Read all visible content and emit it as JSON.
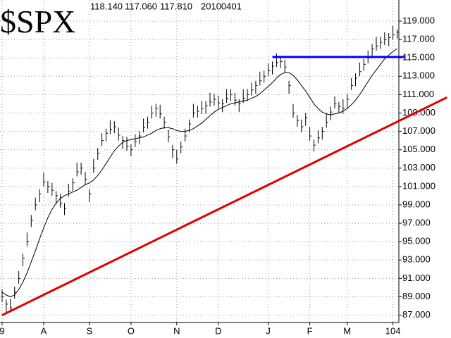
{
  "chart_data": {
    "type": "ohlc",
    "title": "$SPX",
    "header_values": [
      "118.140",
      "117.060",
      "117.810",
      "20100401"
    ],
    "categories": [
      "9",
      null,
      null,
      null,
      null,
      null,
      null,
      null,
      null,
      null,
      "A",
      null,
      null,
      null,
      null,
      null,
      null,
      null,
      null,
      null,
      null,
      "S",
      null,
      null,
      null,
      null,
      null,
      null,
      null,
      null,
      null,
      "O",
      null,
      null,
      null,
      null,
      null,
      null,
      null,
      null,
      null,
      null,
      "N",
      null,
      null,
      null,
      null,
      null,
      null,
      null,
      null,
      null,
      "D",
      null,
      null,
      null,
      null,
      null,
      null,
      null,
      null,
      null,
      null,
      null,
      "J",
      null,
      null,
      null,
      null,
      null,
      null,
      null,
      null,
      null,
      "F",
      null,
      null,
      null,
      null,
      null,
      null,
      null,
      null,
      "M",
      null,
      null,
      null,
      null,
      null,
      null,
      null,
      null,
      null,
      null,
      "104",
      null
    ],
    "ohlc": {
      "color": "#000000",
      "high": [
        89.8,
        88.7,
        88.8,
        90.1,
        91.8,
        93.7,
        96.0,
        97.9,
        99.8,
        100.7,
        102.5,
        101.6,
        101.4,
        100.5,
        100.2,
        99.2,
        101.3,
        101.9,
        103.6,
        103.6,
        102.6,
        100.7,
        104.0,
        105.2,
        106.8,
        107.3,
        108.2,
        108.1,
        107.4,
        106.5,
        106.4,
        105.6,
        106.7,
        107.0,
        108.4,
        108.6,
        109.8,
        110.0,
        109.9,
        108.6,
        107.2,
        105.5,
        105.0,
        105.9,
        107.3,
        108.3,
        110.0,
        109.8,
        110.3,
        110.3,
        111.2,
        111.1,
        110.9,
        110.5,
        111.6,
        111.6,
        111.2,
        110.5,
        111.6,
        111.6,
        112.3,
        112.5,
        113.5,
        113.6,
        114.4,
        114.6,
        115.5,
        115.2,
        114.8,
        112.5,
        110.0,
        108.8,
        108.3,
        109.0,
        107.5,
        106.1,
        107.1,
        107.5,
        109.0,
        109.7,
        110.8,
        110.2,
        110.5,
        111.1,
        112.8,
        113.3,
        114.5,
        114.9,
        115.8,
        116.5,
        117.3,
        117.3,
        117.8,
        117.7,
        118.5,
        118.1
      ],
      "low": [
        88.4,
        87.3,
        87.3,
        88.8,
        90.4,
        92.3,
        94.5,
        96.6,
        98.4,
        99.3,
        101.0,
        100.3,
        100.0,
        99.1,
        98.7,
        97.9,
        99.9,
        100.5,
        102.1,
        102.3,
        101.2,
        99.3,
        102.5,
        103.9,
        105.4,
        105.9,
        106.7,
        106.8,
        106.0,
        105.1,
        104.9,
        104.3,
        105.3,
        105.6,
        106.9,
        107.3,
        108.4,
        108.6,
        108.4,
        107.3,
        105.8,
        104.1,
        103.5,
        104.6,
        105.9,
        106.9,
        108.5,
        108.5,
        108.9,
        108.9,
        109.7,
        109.8,
        109.5,
        109.1,
        110.1,
        110.3,
        109.8,
        109.1,
        110.1,
        110.3,
        110.9,
        111.1,
        112.0,
        112.3,
        113.0,
        113.2,
        114.0,
        113.9,
        113.4,
        111.1,
        108.5,
        107.5,
        106.9,
        107.6,
        106.0,
        104.8,
        105.7,
        106.1,
        107.4,
        108.2,
        109.5,
        109.0,
        108.9,
        109.6,
        111.5,
        111.9,
        113.0,
        113.6,
        114.4,
        115.1,
        115.8,
        116.0,
        116.4,
        116.3,
        117.0,
        117.1
      ],
      "close": [
        89.0,
        88.2,
        87.8,
        89.5,
        91.0,
        93.2,
        95.0,
        97.3,
        99.0,
        100.2,
        101.5,
        101.0,
        100.6,
        100.0,
        99.2,
        98.6,
        100.5,
        101.4,
        102.6,
        103.0,
        101.8,
        100.2,
        103.0,
        104.6,
        106.0,
        106.8,
        107.2,
        107.5,
        106.6,
        106.0,
        105.4,
        105.0,
        105.9,
        106.5,
        107.4,
        108.0,
        109.0,
        109.5,
        108.9,
        108.0,
        106.4,
        105.0,
        104.0,
        105.3,
        106.5,
        107.8,
        109.0,
        109.2,
        109.5,
        109.8,
        110.2,
        110.5,
        110.1,
        110.0,
        110.6,
        111.0,
        110.4,
        110.0,
        110.6,
        111.0,
        111.5,
        112.0,
        112.5,
        113.0,
        113.6,
        114.1,
        114.5,
        114.6,
        114.0,
        112.0,
        109.0,
        108.2,
        107.5,
        108.5,
        106.5,
        105.5,
        106.3,
        107.0,
        108.0,
        109.1,
        110.0,
        109.7,
        109.5,
        110.5,
        112.0,
        112.8,
        113.5,
        114.3,
        115.0,
        116.0,
        116.3,
        116.7,
        117.0,
        117.2,
        117.5,
        117.8
      ]
    },
    "moving_average": {
      "color": "#000000",
      "values": [
        89.5,
        89.2,
        89.0,
        89.2,
        89.8,
        90.6,
        91.6,
        92.8,
        94.0,
        95.3,
        96.5,
        97.6,
        98.5,
        99.2,
        99.7,
        100.0,
        100.2,
        100.4,
        100.6,
        100.9,
        101.2,
        101.4,
        101.7,
        102.2,
        102.8,
        103.5,
        104.2,
        104.9,
        105.4,
        105.8,
        106.0,
        106.1,
        106.2,
        106.3,
        106.4,
        106.6,
        106.8,
        107.1,
        107.3,
        107.4,
        107.4,
        107.3,
        107.1,
        107.0,
        107.0,
        107.1,
        107.3,
        107.6,
        107.9,
        108.3,
        108.7,
        109.1,
        109.4,
        109.6,
        109.8,
        110.0,
        110.1,
        110.2,
        110.3,
        110.4,
        110.6,
        110.8,
        111.1,
        111.5,
        111.9,
        112.3,
        112.8,
        113.2,
        113.4,
        113.4,
        113.1,
        112.6,
        112.0,
        111.4,
        110.7,
        110.0,
        109.5,
        109.1,
        108.9,
        108.8,
        108.9,
        109.0,
        109.2,
        109.5,
        109.9,
        110.4,
        111.0,
        111.7,
        112.4,
        113.1,
        113.7,
        114.3,
        114.9,
        115.3,
        115.7,
        116.0
      ]
    },
    "trendlines": [
      {
        "color": "#e00000",
        "x": [
          0,
          107
        ],
        "y": [
          87.0,
          110.7
        ]
      },
      {
        "color": "#0000ff",
        "x": [
          65,
          97
        ],
        "y": [
          115.1,
          115.1
        ]
      }
    ],
    "ylim": [
      86.2,
      121.3
    ],
    "yticks": [
      {
        "value": 87,
        "label": "87.000"
      },
      {
        "value": 89,
        "label": "89.000"
      },
      {
        "value": 91,
        "label": "91.000"
      },
      {
        "value": 93,
        "label": "93.000"
      },
      {
        "value": 95,
        "label": "95.000"
      },
      {
        "value": 97,
        "label": "97.000"
      },
      {
        "value": 99,
        "label": "99.000"
      },
      {
        "value": 101,
        "label": "101.000"
      },
      {
        "value": 103,
        "label": "103.000"
      },
      {
        "value": 105,
        "label": "105.000"
      },
      {
        "value": 107,
        "label": "107.000"
      },
      {
        "value": 109,
        "label": "109.000"
      },
      {
        "value": 111,
        "label": "111.000"
      },
      {
        "value": 113,
        "label": "113.000"
      },
      {
        "value": 115,
        "label": "115.000"
      },
      {
        "value": 117,
        "label": "117.000"
      },
      {
        "value": 119,
        "label": "119.000"
      }
    ],
    "grid": true
  }
}
